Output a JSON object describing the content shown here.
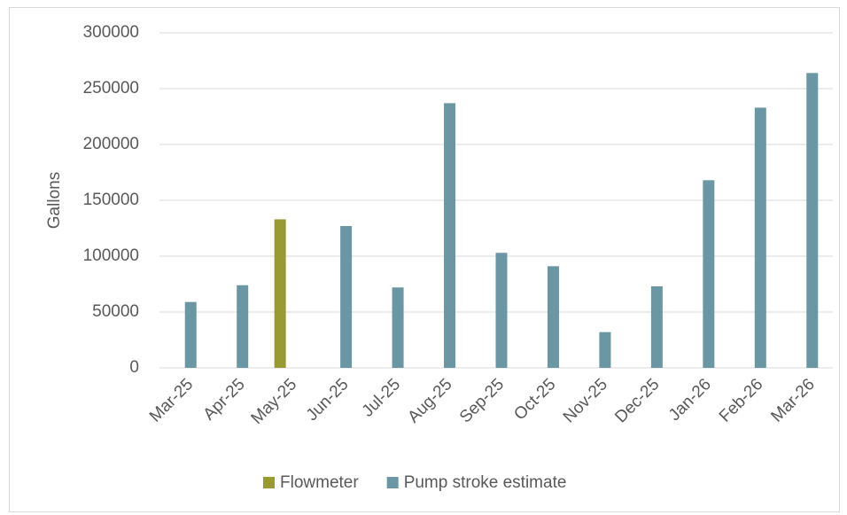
{
  "chart_data": {
    "type": "bar",
    "y_label": "Gallons",
    "categories": [
      "Mar-25",
      "Apr-25",
      "May-25",
      "Jun-25",
      "Jul-25",
      "Aug-25",
      "Sep-25",
      "Oct-25",
      "Nov-25",
      "Dec-25",
      "Jan-26",
      "Feb-26",
      "Mar-26"
    ],
    "series": [
      {
        "name": "Flowmeter",
        "color": "#9a9a32",
        "values": [
          null,
          null,
          133000,
          null,
          null,
          null,
          null,
          null,
          null,
          null,
          null,
          null,
          null
        ]
      },
      {
        "name": "Pump stroke estimate",
        "color": "#6b97a5",
        "values": [
          59000,
          74000,
          null,
          127000,
          72000,
          237000,
          103000,
          91000,
          32000,
          73000,
          168000,
          233000,
          264000
        ]
      }
    ],
    "ylim": [
      0,
      300000
    ],
    "yticks": [
      0,
      50000,
      100000,
      150000,
      200000,
      250000,
      300000
    ],
    "grid": true,
    "legend": "bottom"
  }
}
